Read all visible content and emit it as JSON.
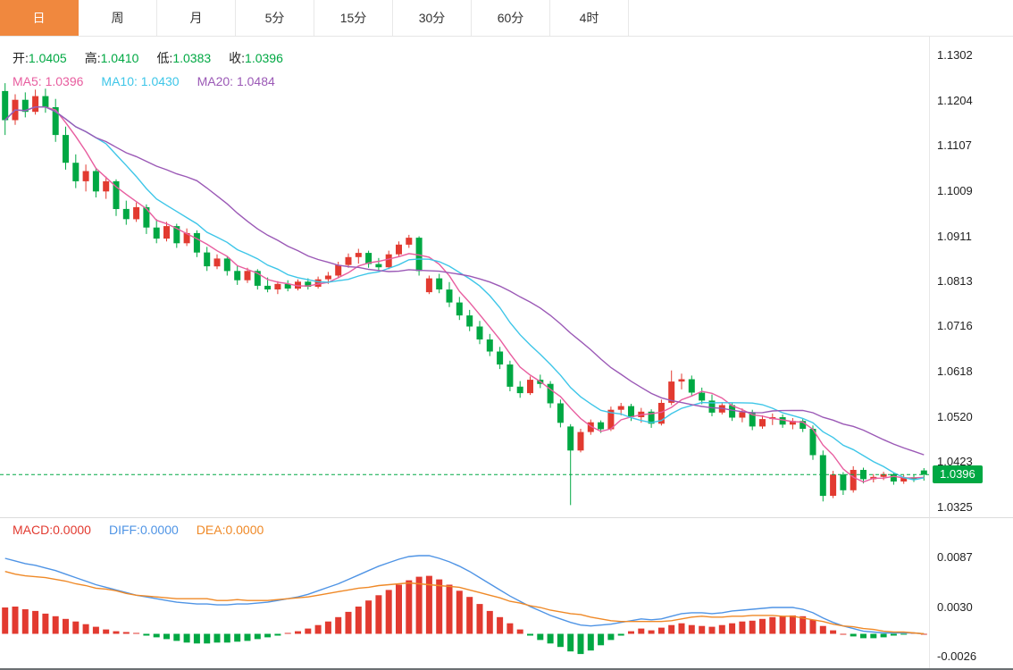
{
  "tabs": {
    "items": [
      {
        "label": "日",
        "active": true
      },
      {
        "label": "周",
        "active": false
      },
      {
        "label": "月",
        "active": false
      },
      {
        "label": "5分",
        "active": false
      },
      {
        "label": "15分",
        "active": false
      },
      {
        "label": "30分",
        "active": false
      },
      {
        "label": "60分",
        "active": false
      },
      {
        "label": "4时",
        "active": false
      }
    ]
  },
  "main_chart": {
    "ohlc_legend": {
      "open_label": "开:",
      "open": "1.0405",
      "high_label": "高:",
      "high": "1.0410",
      "low_label": "低:",
      "low": "1.0383",
      "close_label": "收:",
      "close": "1.0396"
    },
    "ma_legend": {
      "ma5_label": "MA5:",
      "ma5": "1.0396",
      "ma10_label": "MA10:",
      "ma10": "1.0430",
      "ma20_label": "MA20:",
      "ma20": "1.0484"
    },
    "price_axis": {
      "labels": [
        "1.1302",
        "1.1204",
        "1.1107",
        "1.1009",
        "1.0911",
        "1.0813",
        "1.0716",
        "1.0618",
        "1.0520",
        "1.0423",
        "1.0325"
      ],
      "current_price": "1.0396"
    }
  },
  "macd_panel": {
    "legend": {
      "macd_label": "MACD:",
      "macd": "0.0000",
      "diff_label": "DIFF:",
      "diff": "0.0000",
      "dea_label": "DEA:",
      "dea": "0.0000"
    },
    "axis_labels": [
      "0.0087",
      "0.0030",
      "-0.0026"
    ]
  },
  "colors": {
    "up": "#e23a30",
    "down": "#00a843",
    "ma5": "#e85d9f",
    "ma10": "#3ec6e8",
    "ma20": "#9b59b6",
    "diff": "#4f94e5",
    "dea": "#ef8927",
    "tab_active_bg": "#f0883e",
    "badge_bg": "#00a843"
  },
  "chart_data": [
    {
      "type": "candlestick",
      "title": "Daily candlestick chart with MA5/MA10/MA20 overlays",
      "convention": "red = up, green = down",
      "ylim": [
        1.0325,
        1.1302
      ],
      "y_ticks": [
        "1.1302",
        "1.1204",
        "1.1107",
        "1.1009",
        "1.0911",
        "1.0813",
        "1.0716",
        "1.0618",
        "1.0520",
        "1.0423",
        "1.0325"
      ],
      "last_price": 1.0396,
      "moving_average_periods": [
        5,
        10,
        20
      ],
      "candles": [
        [
          1.1225,
          1.1242,
          1.113,
          1.1162
        ],
        [
          1.1162,
          1.1218,
          1.1152,
          1.1206
        ],
        [
          1.1206,
          1.1222,
          1.1168,
          1.118
        ],
        [
          1.118,
          1.1228,
          1.1174,
          1.1214
        ],
        [
          1.1214,
          1.123,
          1.1178,
          1.119
        ],
        [
          1.119,
          1.1208,
          1.1115,
          1.113
        ],
        [
          1.113,
          1.1148,
          1.1055,
          1.107
        ],
        [
          1.107,
          1.1088,
          1.1015,
          1.103
        ],
        [
          1.103,
          1.1066,
          1.1008,
          1.1052
        ],
        [
          1.1052,
          1.1058,
          1.0995,
          1.1008
        ],
        [
          1.1008,
          1.104,
          1.0992,
          1.103
        ],
        [
          1.103,
          1.1034,
          1.0955,
          1.097
        ],
        [
          1.097,
          1.0988,
          1.0936,
          1.0948
        ],
        [
          1.0948,
          1.0984,
          1.0942,
          1.0974
        ],
        [
          1.0974,
          1.098,
          1.0916,
          1.093
        ],
        [
          1.093,
          1.0948,
          1.0896,
          1.0906
        ],
        [
          1.0906,
          1.0942,
          1.09,
          1.0933
        ],
        [
          1.0933,
          1.0938,
          1.0886,
          1.0896
        ],
        [
          1.0896,
          1.0928,
          1.089,
          1.0918
        ],
        [
          1.0918,
          1.0924,
          1.0866,
          1.0876
        ],
        [
          1.0876,
          1.0888,
          1.0836,
          1.0846
        ],
        [
          1.0846,
          1.0872,
          1.084,
          1.0863
        ],
        [
          1.0863,
          1.0868,
          1.0826,
          1.0836
        ],
        [
          1.0836,
          1.0848,
          1.0806,
          1.0816
        ],
        [
          1.0816,
          1.0843,
          1.081,
          1.0836
        ],
        [
          1.0836,
          1.084,
          1.0796,
          1.0804
        ],
        [
          1.0804,
          1.0822,
          1.079,
          1.0796
        ],
        [
          1.0796,
          1.0814,
          1.0786,
          1.0808
        ],
        [
          1.0808,
          1.0816,
          1.0792,
          1.0798
        ],
        [
          1.0798,
          1.0818,
          1.0794,
          1.0813
        ],
        [
          1.0813,
          1.082,
          1.0796,
          1.0802
        ],
        [
          1.0802,
          1.0824,
          1.0798,
          1.0818
        ],
        [
          1.0818,
          1.0834,
          1.0808,
          1.0826
        ],
        [
          1.0826,
          1.0856,
          1.082,
          1.0849
        ],
        [
          1.0849,
          1.0874,
          1.0843,
          1.0866
        ],
        [
          1.0866,
          1.0884,
          1.0852,
          1.0875
        ],
        [
          1.0875,
          1.088,
          1.0843,
          1.0851
        ],
        [
          1.0851,
          1.0864,
          1.0836,
          1.0844
        ],
        [
          1.0844,
          1.088,
          1.084,
          1.0872
        ],
        [
          1.0872,
          1.09,
          1.0866,
          1.0893
        ],
        [
          1.0893,
          1.0914,
          1.0886,
          1.0908
        ],
        [
          1.0908,
          1.0911,
          1.0826,
          1.0836
        ],
        [
          1.079,
          1.0826,
          1.0786,
          1.082
        ],
        [
          1.082,
          1.083,
          1.0788,
          1.0796
        ],
        [
          1.0796,
          1.0812,
          1.0758,
          1.0768
        ],
        [
          1.0768,
          1.078,
          1.073,
          1.074
        ],
        [
          1.074,
          1.0752,
          1.0706,
          1.0716
        ],
        [
          1.0716,
          1.0728,
          1.0678,
          1.0688
        ],
        [
          1.0688,
          1.07,
          1.0652,
          1.0662
        ],
        [
          1.0662,
          1.0672,
          1.0624,
          1.0634
        ],
        [
          1.0634,
          1.0642,
          1.0576,
          1.0586
        ],
        [
          1.0586,
          1.0598,
          1.0562,
          1.0572
        ],
        [
          1.0572,
          1.0608,
          1.0568,
          1.0601
        ],
        [
          1.0601,
          1.0612,
          1.0583,
          1.0592
        ],
        [
          1.0592,
          1.0598,
          1.054,
          1.055
        ],
        [
          1.055,
          1.0558,
          1.0498,
          1.0508
        ],
        [
          1.05,
          1.0505,
          1.033,
          1.0448
        ],
        [
          1.0448,
          1.0495,
          1.0444,
          1.0488
        ],
        [
          1.0488,
          1.0515,
          1.0482,
          1.0509
        ],
        [
          1.0509,
          1.0513,
          1.0486,
          1.0494
        ],
        [
          1.0494,
          1.0543,
          1.049,
          1.0536
        ],
        [
          1.0536,
          1.0551,
          1.0524,
          1.0544
        ],
        [
          1.0544,
          1.0549,
          1.0512,
          1.052
        ],
        [
          1.052,
          1.054,
          1.0508,
          1.0532
        ],
        [
          1.0532,
          1.0537,
          1.0497,
          1.0506
        ],
        [
          1.0506,
          1.0558,
          1.0502,
          1.0551
        ],
        [
          1.0551,
          1.0621,
          1.0546,
          1.0597
        ],
        [
          1.0597,
          1.0614,
          1.058,
          1.0602
        ],
        [
          1.0602,
          1.061,
          1.0565,
          1.0573
        ],
        [
          1.0573,
          1.0584,
          1.0548,
          1.0556
        ],
        [
          1.0556,
          1.0569,
          1.0522,
          1.053
        ],
        [
          1.053,
          1.0552,
          1.0526,
          1.0546
        ],
        [
          1.0546,
          1.055,
          1.0512,
          1.0519
        ],
        [
          1.0519,
          1.0539,
          1.0509,
          1.0531
        ],
        [
          1.0531,
          1.0536,
          1.0492,
          1.05
        ],
        [
          1.05,
          1.0524,
          1.0495,
          1.0516
        ],
        [
          1.0516,
          1.0528,
          1.0503,
          1.052
        ],
        [
          1.052,
          1.0526,
          1.0497,
          1.0504
        ],
        [
          1.0504,
          1.0518,
          1.0494,
          1.0512
        ],
        [
          1.0512,
          1.0516,
          1.0488,
          1.0495
        ],
        [
          1.0495,
          1.0502,
          1.0428,
          1.0438
        ],
        [
          1.0438,
          1.0448,
          1.0338,
          1.035
        ],
        [
          1.035,
          1.0404,
          1.0345,
          1.0396
        ],
        [
          1.0396,
          1.0401,
          1.0352,
          1.0362
        ],
        [
          1.0362,
          1.0414,
          1.0357,
          1.0406
        ],
        [
          1.0406,
          1.0411,
          1.0377,
          1.0386
        ],
        [
          1.0386,
          1.0397,
          1.0379,
          1.0391
        ],
        [
          1.0391,
          1.0402,
          1.0384,
          1.0397
        ],
        [
          1.0397,
          1.04,
          1.0374,
          1.0381
        ],
        [
          1.0381,
          1.0395,
          1.0376,
          1.039
        ],
        [
          1.039,
          1.0396,
          1.038,
          1.0386
        ],
        [
          1.0405,
          1.041,
          1.0383,
          1.0396
        ]
      ]
    },
    {
      "type": "bar",
      "title": "MACD (bar histogram, red positive / green negative) with DIFF and DEA lines",
      "ylim": [
        -0.0041,
        0.0132
      ],
      "y_ticks": [
        "0.0087",
        "0.0030",
        "-0.0026"
      ],
      "series": [
        {
          "name": "MACD",
          "kind": "bar",
          "values": [
            0.003,
            0.0031,
            0.0028,
            0.0026,
            0.0023,
            0.002,
            0.0017,
            0.0014,
            0.0011,
            0.0008,
            0.0005,
            0.0003,
            0.0002,
            0.0001,
            -0.0002,
            -0.0004,
            -0.0006,
            -0.0008,
            -0.001,
            -0.0011,
            -0.0011,
            -0.001,
            -0.001,
            -0.0009,
            -0.0008,
            -0.0006,
            -0.0004,
            -0.0002,
            0.0001,
            0.0003,
            0.0006,
            0.001,
            0.0014,
            0.0019,
            0.0025,
            0.0031,
            0.0038,
            0.0044,
            0.005,
            0.0056,
            0.0061,
            0.0065,
            0.0066,
            0.0062,
            0.0056,
            0.0049,
            0.0042,
            0.0034,
            0.0026,
            0.0019,
            0.0012,
            0.0005,
            -0.0002,
            -0.0007,
            -0.0011,
            -0.0015,
            -0.002,
            -0.0023,
            -0.0019,
            -0.0013,
            -0.0007,
            -0.0002,
            0.0003,
            0.0006,
            0.0004,
            0.0007,
            0.001,
            0.0012,
            0.001,
            0.0009,
            0.0008,
            0.001,
            0.0012,
            0.0014,
            0.0015,
            0.0017,
            0.0019,
            0.002,
            0.0021,
            0.002,
            0.0016,
            0.0009,
            0.0004,
            0.0,
            -0.0003,
            -0.0005,
            -0.0005,
            -0.0004,
            -0.0002,
            -0.0001,
            0.0001,
            0.0
          ]
        },
        {
          "name": "DIFF",
          "kind": "line",
          "values": [
            0.0086,
            0.0083,
            0.008,
            0.0078,
            0.0075,
            0.0072,
            0.0068,
            0.0064,
            0.006,
            0.0056,
            0.0053,
            0.005,
            0.0047,
            0.0044,
            0.0042,
            0.004,
            0.0038,
            0.0036,
            0.0035,
            0.0034,
            0.0034,
            0.0033,
            0.0033,
            0.0034,
            0.0034,
            0.0035,
            0.0036,
            0.0038,
            0.004,
            0.0042,
            0.0045,
            0.0049,
            0.0053,
            0.0057,
            0.0062,
            0.0067,
            0.0072,
            0.0077,
            0.0081,
            0.0085,
            0.0088,
            0.0089,
            0.0089,
            0.0086,
            0.0082,
            0.0077,
            0.0071,
            0.0064,
            0.0057,
            0.005,
            0.0043,
            0.0037,
            0.0031,
            0.0026,
            0.0021,
            0.0017,
            0.0013,
            0.001,
            0.0009,
            0.001,
            0.0011,
            0.0013,
            0.0015,
            0.0017,
            0.0016,
            0.0017,
            0.002,
            0.0023,
            0.0024,
            0.0024,
            0.0023,
            0.0024,
            0.0026,
            0.0027,
            0.0028,
            0.0029,
            0.003,
            0.003,
            0.003,
            0.0028,
            0.0024,
            0.0018,
            0.0013,
            0.0009,
            0.0006,
            0.0003,
            0.0002,
            0.0001,
            0.0001,
            0.0001,
            0.0001,
            0.0
          ]
        },
        {
          "name": "DEA",
          "kind": "line",
          "values": [
            0.0071,
            0.0068,
            0.0066,
            0.0065,
            0.0064,
            0.0062,
            0.006,
            0.0057,
            0.0055,
            0.0052,
            0.0051,
            0.0049,
            0.0046,
            0.0044,
            0.0043,
            0.0042,
            0.0041,
            0.004,
            0.004,
            0.004,
            0.004,
            0.0038,
            0.0038,
            0.0039,
            0.0038,
            0.0038,
            0.0038,
            0.0039,
            0.004,
            0.0041,
            0.0042,
            0.0044,
            0.0046,
            0.0048,
            0.005,
            0.0052,
            0.0053,
            0.0055,
            0.0056,
            0.0057,
            0.0058,
            0.0057,
            0.0056,
            0.0055,
            0.0054,
            0.0053,
            0.005,
            0.0047,
            0.0044,
            0.0041,
            0.0037,
            0.0035,
            0.0032,
            0.003,
            0.0027,
            0.0025,
            0.0023,
            0.0022,
            0.0019,
            0.0017,
            0.0015,
            0.0014,
            0.0014,
            0.0014,
            0.0014,
            0.0014,
            0.0015,
            0.0017,
            0.0019,
            0.002,
            0.0019,
            0.0019,
            0.002,
            0.002,
            0.0021,
            0.0021,
            0.0021,
            0.002,
            0.002,
            0.0018,
            0.0016,
            0.0014,
            0.0011,
            0.0009,
            0.0008,
            0.0006,
            0.0005,
            0.0003,
            0.0002,
            0.0002,
            0.0001,
            0.0
          ]
        }
      ]
    }
  ]
}
